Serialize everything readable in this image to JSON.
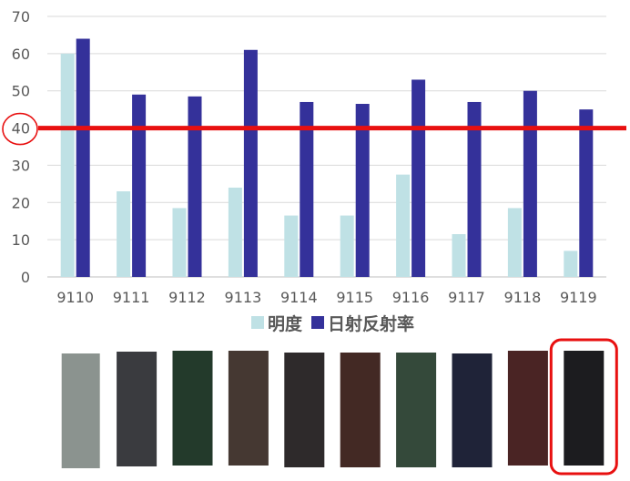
{
  "chart_data": {
    "type": "bar",
    "categories": [
      "9110",
      "9111",
      "9112",
      "9113",
      "9114",
      "9115",
      "9116",
      "9117",
      "9118",
      "9119"
    ],
    "series": [
      {
        "name": "明度",
        "values": [
          60,
          23,
          18.5,
          24,
          16.5,
          16.5,
          27.5,
          11.5,
          18.5,
          7
        ],
        "color": "#bfe1e5"
      },
      {
        "name": "日射反射率",
        "values": [
          64,
          49,
          48.5,
          61,
          47,
          46.5,
          53,
          47,
          50,
          45
        ],
        "color": "#34319a"
      }
    ],
    "yticks": [
      "0",
      "10",
      "20",
      "30",
      "40",
      "50",
      "60",
      "70"
    ],
    "ylim": [
      0,
      70
    ],
    "grid": true,
    "legend": "bottom",
    "reference_line": {
      "value": 40,
      "color": "#e81010"
    },
    "highlight_tick": "40",
    "swatches": [
      "#8b938f",
      "#3a3b3f",
      "#233a2b",
      "#453832",
      "#2e2a2b",
      "#432924",
      "#34493a",
      "#1f2338",
      "#4a2424",
      "#1c1c1f"
    ],
    "highlight_swatch_index": 9,
    "highlight_color": "#e81010"
  }
}
